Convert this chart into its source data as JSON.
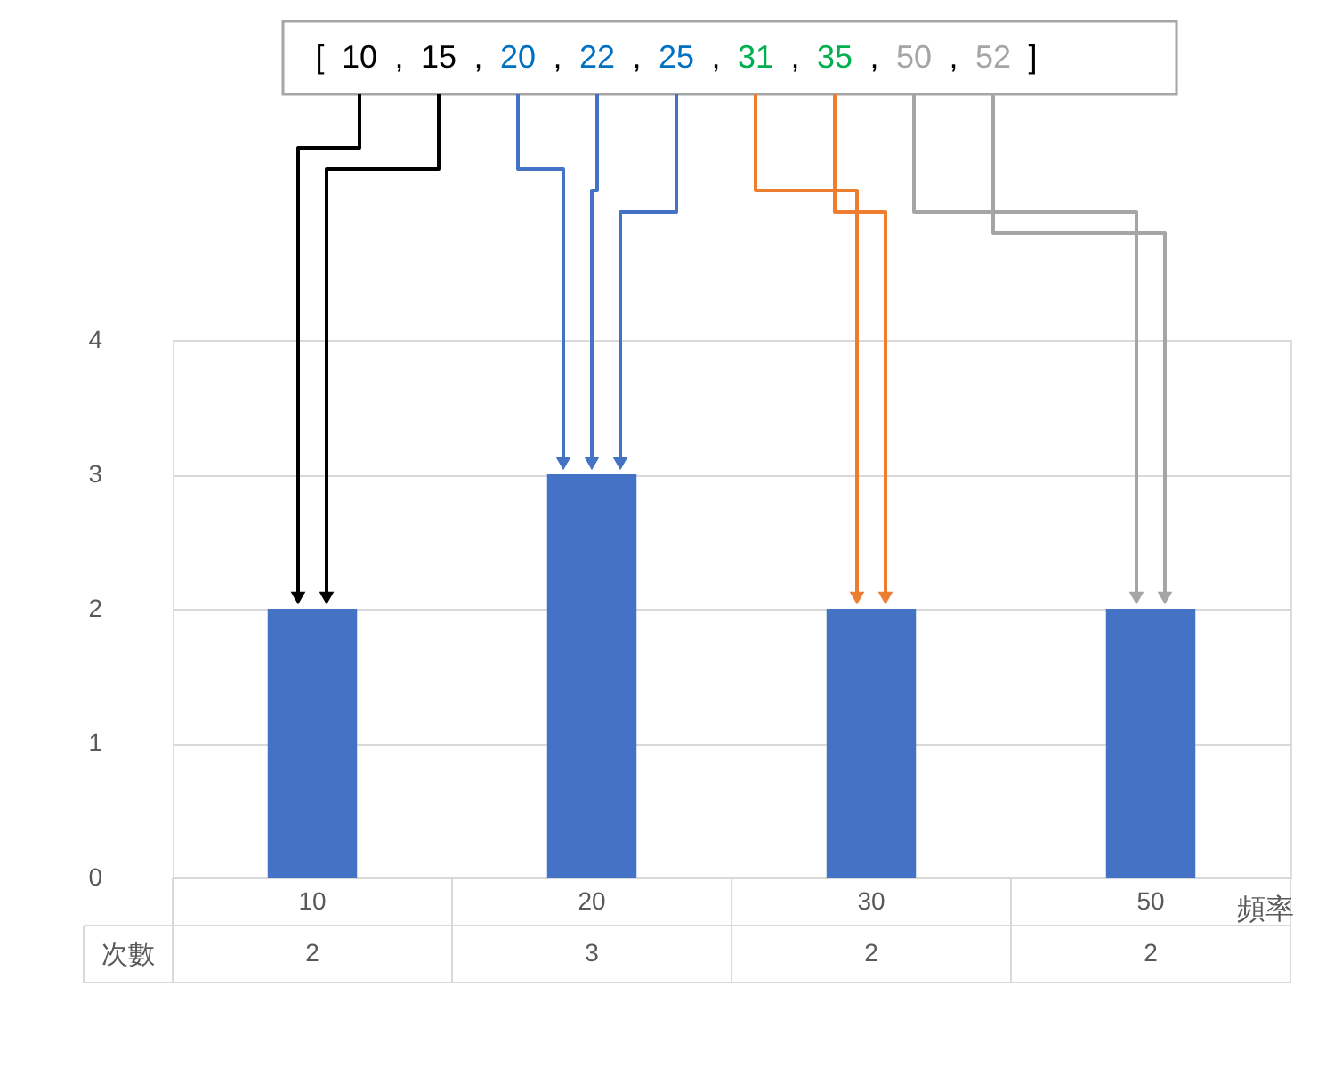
{
  "chart_data": {
    "type": "bar",
    "categories": [
      "10",
      "20",
      "30",
      "50"
    ],
    "series": [
      {
        "name": "次數",
        "color": "#4472c4",
        "values": [
          2,
          3,
          2,
          2
        ]
      }
    ],
    "xlabel": "頻率",
    "ylim": [
      0,
      4
    ],
    "yticks": [
      0,
      1,
      2,
      3,
      4
    ],
    "grid": "y",
    "data_labels": true,
    "annotations": [
      "[ 10 , 15 , 20 , 22 , 25 , 31 , 35 , 50 , 52 ]"
    ]
  }
}
